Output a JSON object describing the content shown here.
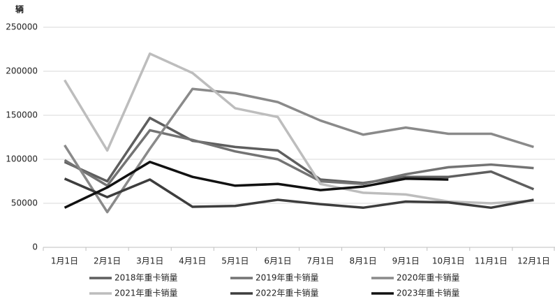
{
  "chart_data": {
    "type": "line",
    "y_label": "辆",
    "categories": [
      "1月1日",
      "2月1日",
      "3月1日",
      "4月1日",
      "5月1日",
      "6月1日",
      "7月1日",
      "8月1日",
      "9月1日",
      "10月1日",
      "11月1日",
      "12月1日"
    ],
    "series": [
      {
        "name": "2018年重卡销量",
        "color": "#5e5e5e",
        "values": [
          97000,
          75000,
          147000,
          121000,
          114000,
          110000,
          77000,
          73000,
          80000,
          80000,
          86000,
          66000
        ]
      },
      {
        "name": "2019年重卡销量",
        "color": "#737373",
        "values": [
          99000,
          70000,
          133000,
          122000,
          109000,
          100000,
          75000,
          72000,
          83000,
          91000,
          94000,
          90000
        ]
      },
      {
        "name": "2020年重卡销量",
        "color": "#8a8a8a",
        "values": [
          116000,
          40000,
          112000,
          180000,
          175000,
          165000,
          144000,
          128000,
          136000,
          129000,
          129000,
          114000
        ]
      },
      {
        "name": "2021年重卡销量",
        "color": "#bdbdbd",
        "values": [
          190000,
          110000,
          220000,
          198000,
          158000,
          148000,
          72000,
          62000,
          60000,
          52000,
          50000,
          53000
        ]
      },
      {
        "name": "2022年重卡销量",
        "color": "#3d3d3d",
        "values": [
          78000,
          57000,
          77000,
          46000,
          47000,
          54000,
          49000,
          45000,
          52000,
          51000,
          45000,
          54000
        ]
      },
      {
        "name": "2023年重卡销量",
        "color": "#111111",
        "values": [
          45000,
          68000,
          97000,
          80000,
          70000,
          72000,
          65000,
          69000,
          78000,
          77000,
          null,
          null
        ]
      }
    ],
    "ylim": [
      0,
      250000
    ],
    "yticks": [
      0,
      50000,
      100000,
      150000,
      200000,
      250000
    ],
    "grid": true
  }
}
